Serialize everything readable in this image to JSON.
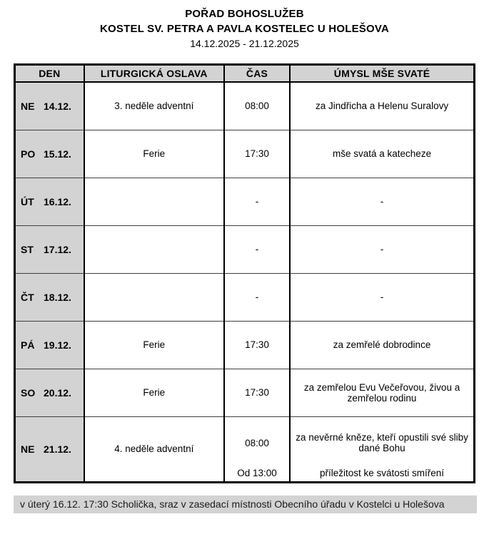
{
  "header": {
    "title": "POŘAD BOHOSLUŽEB",
    "subtitle": "KOSTEL SV. PETRA A PAVLA KOSTELEC U HOLEŠOVA",
    "date_range": "14.12.2025 - 21.12.2025"
  },
  "colors": {
    "cell_gray": "#d3d3d3",
    "border_black": "#000000"
  },
  "schedule": {
    "columns": [
      "DEN",
      "LITURGICKÁ OSLAVA",
      "ČAS",
      "ÚMYSL MŠE SVATÉ"
    ],
    "rows": [
      {
        "day": "NE",
        "date": "14.12.",
        "celebration": "3. neděle adventní",
        "entries": [
          {
            "time": "08:00",
            "intention": "za Jindřicha a Helenu Suralovy"
          }
        ]
      },
      {
        "day": "PO",
        "date": "15.12.",
        "celebration": "Ferie",
        "entries": [
          {
            "time": "17:30",
            "intention": "mše svatá a katecheze"
          }
        ]
      },
      {
        "day": "ÚT",
        "date": "16.12.",
        "celebration": "",
        "entries": [
          {
            "time": "-",
            "intention": "-"
          }
        ]
      },
      {
        "day": "ST",
        "date": "17.12.",
        "celebration": "",
        "entries": [
          {
            "time": "-",
            "intention": "-"
          }
        ]
      },
      {
        "day": "ČT",
        "date": "18.12.",
        "celebration": "",
        "entries": [
          {
            "time": "-",
            "intention": "-"
          }
        ]
      },
      {
        "day": "PÁ",
        "date": "19.12.",
        "celebration": "Ferie",
        "entries": [
          {
            "time": "17:30",
            "intention": "za zemřelé dobrodince"
          }
        ]
      },
      {
        "day": "SO",
        "date": "20.12.",
        "celebration": "Ferie",
        "entries": [
          {
            "time": "17:30",
            "intention": "za zemřelou Evu Večeřovou, živou a zemřelou rodinu"
          }
        ]
      },
      {
        "day": "NE",
        "date": "21.12.",
        "celebration": "4. neděle adventní",
        "entries": [
          {
            "time": "08:00",
            "intention": "za nevěrné kněze, kteří opustili své sliby dané Bohu"
          },
          {
            "time": "Od 13:00",
            "intention": "příležitost ke svátosti smíření"
          }
        ]
      }
    ]
  },
  "footer": {
    "note": "v úterý 16.12. 17:30 Scholička, sraz v zasedací místnosti Obecního úřadu v Kostelci u Holešova"
  }
}
